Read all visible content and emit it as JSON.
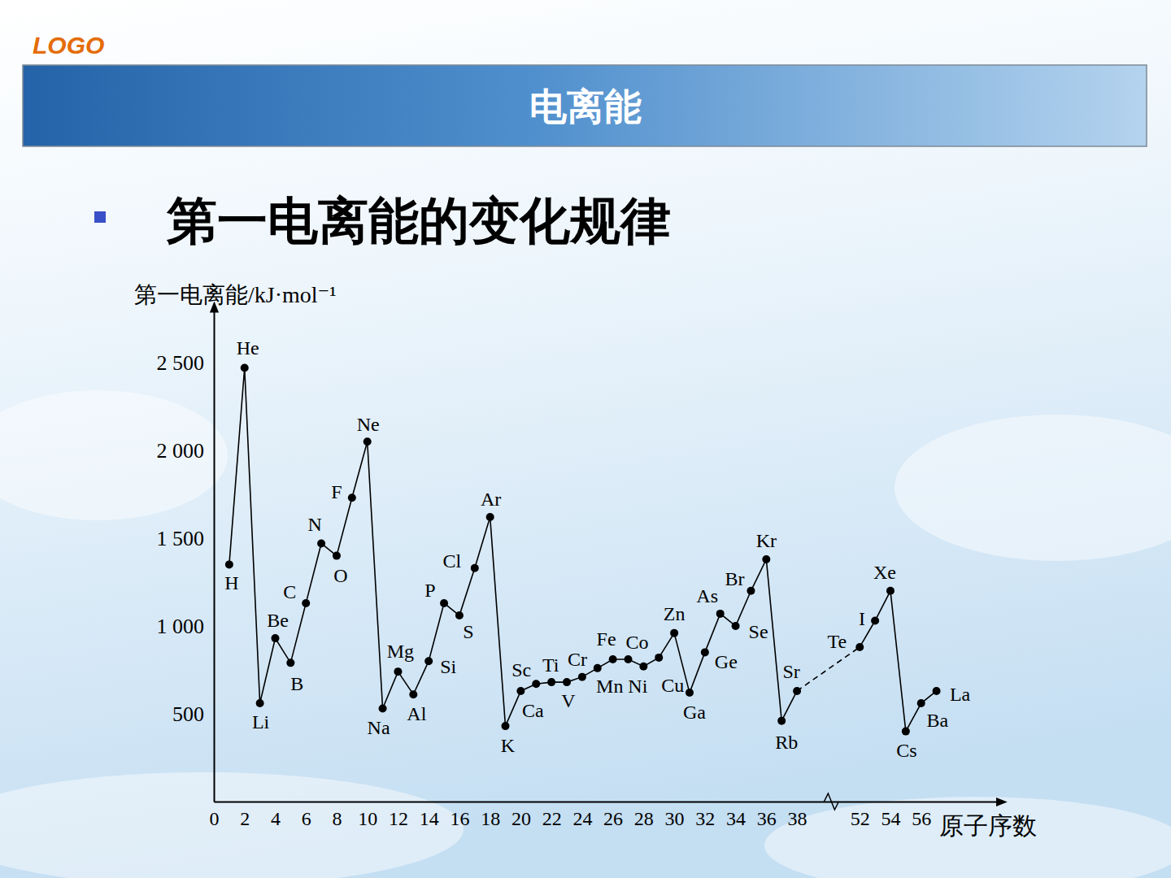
{
  "logo": "LOGO",
  "header": {
    "title": "电离能"
  },
  "bullet": "第一电离能的变化规律",
  "chart_data": {
    "type": "line",
    "x_label": "原子序数",
    "y_label": "第一电离能/kJ·mol⁻¹",
    "x": [
      1,
      2,
      3,
      4,
      5,
      6,
      7,
      8,
      9,
      10,
      11,
      12,
      13,
      14,
      15,
      16,
      17,
      18,
      19,
      20,
      21,
      22,
      23,
      24,
      25,
      26,
      27,
      28,
      29,
      30,
      31,
      32,
      33,
      34,
      35,
      36,
      37,
      38,
      52,
      53,
      54,
      55,
      56,
      57
    ],
    "values": [
      1350,
      2470,
      560,
      930,
      790,
      1130,
      1470,
      1400,
      1730,
      2050,
      530,
      740,
      610,
      800,
      1130,
      1060,
      1330,
      1620,
      430,
      630,
      670,
      680,
      680,
      710,
      760,
      810,
      810,
      770,
      820,
      960,
      620,
      850,
      1070,
      1000,
      1200,
      1380,
      460,
      630,
      880,
      1030,
      1200,
      400,
      560,
      630
    ],
    "point_labels": [
      "H",
      "He",
      "Li",
      "Be",
      "B",
      "C",
      "N",
      "O",
      "F",
      "Ne",
      "Na",
      "Mg",
      "Al",
      "Si",
      "P",
      "S",
      "Cl",
      "Ar",
      "K",
      "Ca",
      "Sc",
      "Ti",
      "V",
      "Cr",
      "Mn",
      "Fe",
      "Co",
      "Ni",
      "Cu",
      "Zn",
      "Ga",
      "Ge",
      "As",
      "Se",
      "Br",
      "Kr",
      "Rb",
      "Sr",
      "Te",
      "I",
      "Xe",
      "Cs",
      "Ba",
      "La"
    ],
    "color": "#000000",
    "marker": "circle",
    "xlim": [
      0,
      61
    ],
    "xticks": [
      0,
      2,
      4,
      6,
      8,
      10,
      12,
      14,
      16,
      18,
      20,
      22,
      24,
      26,
      28,
      30,
      32,
      34,
      36,
      38,
      52,
      54,
      56
    ],
    "ylim": [
      0,
      2800
    ],
    "yticks": [
      500,
      {
        "value": 1000,
        "label": "1 000"
      },
      {
        "value": 1500,
        "label": "1 500"
      },
      {
        "value": 2000,
        "label": "2 000"
      },
      {
        "value": 2500,
        "label": "2 500"
      }
    ],
    "grid": false
  }
}
